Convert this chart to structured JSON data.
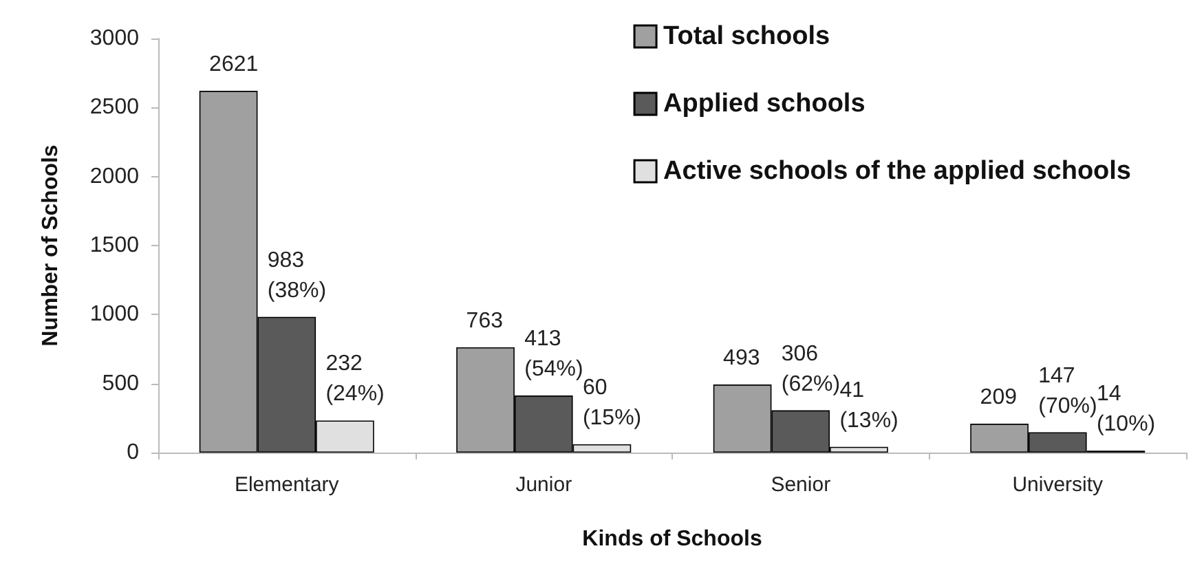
{
  "chart_data": {
    "type": "bar",
    "xlabel": "Kinds of Schools",
    "ylabel": "Number of Schools",
    "categories": [
      "Elementary",
      "Junior",
      "Senior",
      "University"
    ],
    "ylim": [
      0,
      3000
    ],
    "yticks": [
      0,
      500,
      1000,
      1500,
      2000,
      2500,
      3000
    ],
    "grid": false,
    "legend": "top right",
    "series": [
      {
        "name": "Total schools",
        "color": "#a0a0a0",
        "values": [
          2621,
          763,
          493,
          209
        ],
        "value_labels": [
          "2621",
          "763",
          "493",
          "209"
        ]
      },
      {
        "name": "Applied schools",
        "color": "#5a5a5a",
        "values": [
          983,
          413,
          306,
          147
        ],
        "value_labels": [
          "983 (38%)",
          "413 (54%)",
          "306 (62%)",
          "147 (70%)"
        ]
      },
      {
        "name": "Active schools of the applied schools",
        "color": "#e0e0e0",
        "values": [
          232,
          60,
          41,
          14
        ],
        "value_labels": [
          "232 (24%)",
          "60 (15%)",
          "41 (13%)",
          "14 (10%)"
        ]
      }
    ]
  }
}
